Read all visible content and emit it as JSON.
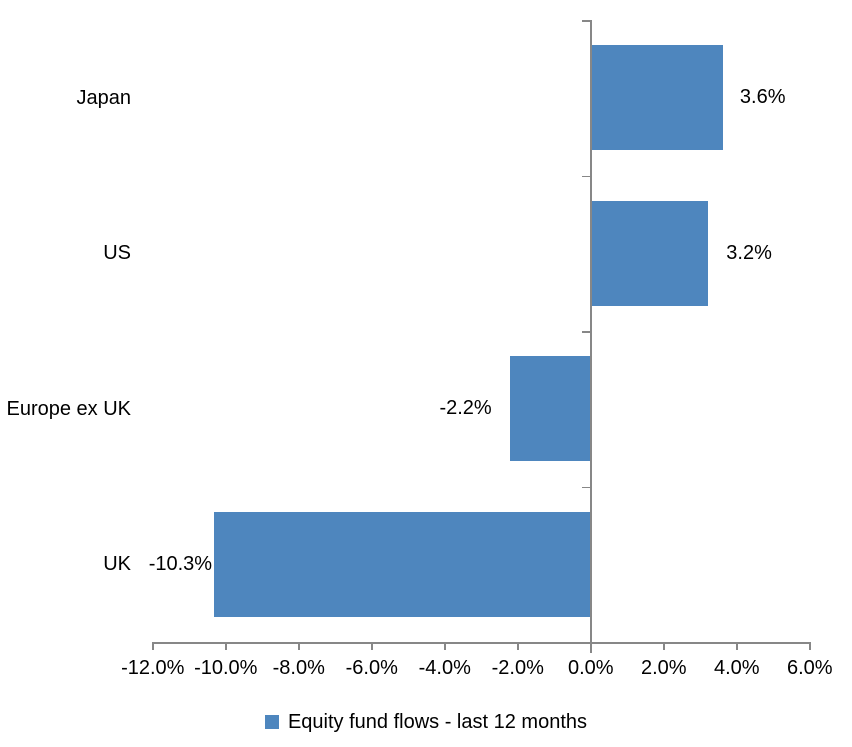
{
  "legend": {
    "label": "Equity fund flows - last 12 months"
  },
  "chart_data": {
    "type": "bar",
    "orientation": "horizontal",
    "title": "",
    "categories": [
      "Japan",
      "US",
      "Europe ex UK",
      "UK"
    ],
    "series": [
      {
        "name": "Equity fund flows - last 12 months",
        "values": [
          3.6,
          3.2,
          -2.2,
          -10.3
        ]
      }
    ],
    "data_labels": [
      "3.6%",
      "3.2%",
      "-2.2%",
      "-10.3%"
    ],
    "value_axis": {
      "min": -12,
      "max": 6,
      "step": 2,
      "tick_labels": [
        "-12.0%",
        "-10.0%",
        "-8.0%",
        "-6.0%",
        "-4.0%",
        "-2.0%",
        "0.0%",
        "2.0%",
        "4.0%",
        "6.0%"
      ]
    },
    "legend_position": "bottom",
    "grid": false,
    "colors": {
      "bar": "#4E86BE",
      "axis": "#878787",
      "text": "#000000"
    }
  }
}
